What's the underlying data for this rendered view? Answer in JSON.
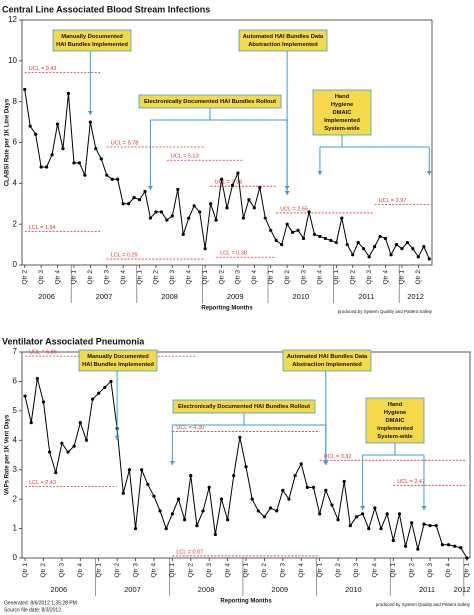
{
  "chart_data": [
    {
      "type": "line",
      "title": "Central Line Associated Blood Stream Infections",
      "y_label": "CLABSI Rate per 1K Line Days",
      "x_label": "Reporting Months",
      "note": "produced by System Quality and Patient Safety",
      "ylim": [
        0,
        12
      ],
      "yticks": [
        0,
        2,
        4,
        6,
        8,
        10,
        12
      ],
      "color": "#000000",
      "limit_color": "#e03030",
      "annotation_color": "#f5d94a",
      "arrow_color": "#3a9fd8",
      "categories": [
        "Qtr 2",
        null,
        null,
        "Qtr 3",
        null,
        null,
        "Qtr 4",
        null,
        null,
        "Qtr 1",
        null,
        null,
        "Qtr 2",
        null,
        null,
        "Qtr 3",
        null,
        null,
        "Qtr 4",
        null,
        null,
        "Qtr 1",
        null,
        null,
        "Qtr 2",
        null,
        null,
        "Qtr 3",
        null,
        null,
        "Qtr 4",
        null,
        null,
        "Qtr 1",
        null,
        null,
        "Qtr 2",
        null,
        null,
        "Qtr 3",
        null,
        null,
        "Qtr 4",
        null,
        null,
        "Qtr 1",
        null,
        null,
        "Qtr 2",
        null,
        null,
        "Qtr 3",
        null,
        null,
        "Qtr 4",
        null,
        null,
        "Qtr 1",
        null,
        null,
        "Qtr 2",
        null,
        null,
        "Qtr 3",
        null,
        null,
        "Qtr 4",
        null,
        null,
        "Qtr 1",
        null,
        null,
        "Qtr 2",
        null,
        null
      ],
      "years": [
        "2006",
        "2007",
        "2008",
        "2009",
        "2010",
        "2011",
        "2012"
      ],
      "values": [
        8.6,
        6.8,
        6.4,
        4.8,
        4.8,
        5.4,
        6.9,
        5.7,
        8.4,
        5.0,
        5.0,
        4.4,
        7.0,
        5.7,
        5.2,
        4.4,
        4.2,
        4.2,
        3.0,
        3.0,
        3.3,
        3.2,
        3.6,
        2.3,
        2.6,
        2.6,
        2.2,
        2.4,
        3.7,
        1.5,
        2.3,
        2.9,
        2.6,
        0.8,
        3.0,
        2.2,
        4.2,
        2.8,
        3.9,
        4.5,
        2.3,
        3.2,
        2.8,
        3.8,
        2.3,
        1.7,
        1.2,
        1.0,
        2.0,
        1.6,
        1.7,
        1.3,
        2.6,
        1.5,
        1.4,
        1.3,
        1.2,
        1.1,
        2.3,
        1.0,
        0.5,
        1.1,
        0.8,
        0.4,
        0.9,
        1.4,
        1.3,
        0.5,
        1.0,
        0.8,
        1.1,
        0.8,
        0.4,
        0.9,
        0.3
      ],
      "limits": [
        {
          "label": "UCL = 9.43",
          "value": 9.43,
          "from": 0,
          "to": 14
        },
        {
          "label": "LCL = 1.64",
          "value": 1.64,
          "from": 0,
          "to": 14
        },
        {
          "label": "UCL = 5.78",
          "value": 5.78,
          "from": 15,
          "to": 33
        },
        {
          "label": "LCL = 0.29",
          "value": 0.29,
          "from": 15,
          "to": 33
        },
        {
          "label": "UCL = 5.13",
          "value": 5.13,
          "from": 26,
          "to": 40
        },
        {
          "label": "UCL = 3.86",
          "value": 3.86,
          "from": 34,
          "to": 46
        },
        {
          "label": "LCL = 0.38",
          "value": 0.38,
          "from": 35,
          "to": 46
        },
        {
          "label": "UCL = 2.55",
          "value": 2.55,
          "from": 46,
          "to": 64
        },
        {
          "label": "UCL = 2.97",
          "value": 2.97,
          "from": 64,
          "to": 74
        }
      ],
      "annotations": [
        {
          "lines": [
            "Manually Documented",
            "HAI Bundles Implemented"
          ],
          "at": [
            12
          ]
        },
        {
          "lines": [
            "Automated HAI Bundles Data",
            "Abstraction Implemented"
          ],
          "at": [
            48
          ]
        },
        {
          "lines": [
            "Electronically Documented HAI Bundles Rollout"
          ],
          "at": [
            23,
            48
          ]
        },
        {
          "lines": [
            "Hand",
            "Hygiene",
            "DMAIC",
            "Implemented",
            "System-wide"
          ],
          "at": [
            54,
            74
          ]
        }
      ]
    },
    {
      "type": "line",
      "title": "Ventilator Associated Pneumonia",
      "y_label": "VAPs Rate per 1K Vent Days",
      "x_label": "Reporting Months",
      "note": "produced by System Quality and Patient Safety",
      "ylim": [
        0,
        7
      ],
      "yticks": [
        0,
        1,
        2,
        3,
        4,
        5,
        6,
        7
      ],
      "color": "#000000",
      "limit_color": "#e03030",
      "annotation_color": "#f5d94a",
      "arrow_color": "#3a9fd8",
      "categories": [
        "Qtr 1",
        null,
        null,
        "Qtr 2",
        null,
        null,
        "Qtr 3",
        null,
        null,
        "Qtr 4",
        null,
        null,
        "Qtr 1",
        null,
        null,
        "Qtr 2",
        null,
        null,
        "Qtr 3",
        null,
        null,
        "Qtr 4",
        null,
        null,
        "Qtr 1",
        null,
        null,
        "Qtr 2",
        null,
        null,
        "Qtr 3",
        null,
        null,
        "Qtr 4",
        null,
        null,
        "Qtr 1",
        null,
        null,
        "Qtr 2",
        null,
        null,
        "Qtr 3",
        null,
        null,
        "Qtr 4",
        null,
        null,
        "Qtr 1",
        null,
        null,
        "Qtr 2",
        null,
        null,
        "Qtr 3",
        null,
        null,
        "Qtr 4",
        null,
        null,
        "Qtr 1",
        null,
        null,
        "Qtr 2",
        null,
        null,
        "Qtr 3",
        null,
        null,
        "Qtr 4",
        null,
        null,
        "Qtr 1"
      ],
      "years": [
        "2006",
        "2007",
        "2008",
        "2009",
        "2010",
        "2011",
        "2012"
      ],
      "values": [
        5.5,
        4.6,
        6.1,
        5.3,
        3.6,
        2.9,
        3.9,
        3.6,
        3.8,
        4.6,
        4.0,
        5.4,
        5.6,
        5.8,
        6.0,
        4.4,
        2.2,
        3.0,
        1.0,
        3.0,
        2.5,
        2.1,
        1.6,
        1.0,
        1.5,
        2.0,
        1.3,
        2.8,
        1.1,
        1.6,
        2.4,
        0.8,
        2.0,
        1.3,
        2.8,
        4.1,
        3.1,
        2.0,
        1.6,
        1.4,
        1.7,
        1.6,
        2.3,
        2.0,
        2.8,
        3.2,
        2.4,
        2.4,
        1.5,
        2.3,
        1.8,
        1.3,
        2.6,
        1.1,
        1.4,
        1.5,
        1.0,
        1.7,
        1.0,
        1.5,
        0.6,
        1.5,
        0.4,
        1.2,
        0.3,
        1.15,
        1.1,
        1.1,
        0.45,
        0.45,
        0.4,
        0.35,
        0.0
      ],
      "limits": [
        {
          "label": "UCL = 6.86",
          "value": 6.86,
          "from": 0,
          "to": 28
        },
        {
          "label": "LCL = 2.43",
          "value": 2.43,
          "from": 0,
          "to": 15
        },
        {
          "label": "UCL = 4.30",
          "value": 4.3,
          "from": 24,
          "to": 48
        },
        {
          "label": "LCL = 0.07",
          "value": 0.07,
          "from": 24,
          "to": 48
        },
        {
          "label": "UCL = 3.32",
          "value": 3.32,
          "from": 48,
          "to": 72
        },
        {
          "label": "UCL = 2.47",
          "value": 2.47,
          "from": 60,
          "to": 72
        }
      ],
      "annotations": [
        {
          "lines": [
            "Manually Documented",
            "HAI Bundles Implemented"
          ],
          "at": [
            15
          ]
        },
        {
          "lines": [
            "Automated HAI Bundles Data",
            "Abstraction Implemented"
          ],
          "at": [
            49
          ]
        },
        {
          "lines": [
            "Electronically Documented HAI Bundles Rollout"
          ],
          "at": [
            24,
            49
          ]
        },
        {
          "lines": [
            "Hand",
            "Hygiene",
            "DMAIC",
            "Implemented",
            "System-wide"
          ],
          "at": [
            55,
            65
          ]
        }
      ]
    }
  ],
  "footer": {
    "generated": "Generated: 8/6/2012 1:35:28 PM",
    "source": "Source file date: 8/3/2012"
  }
}
